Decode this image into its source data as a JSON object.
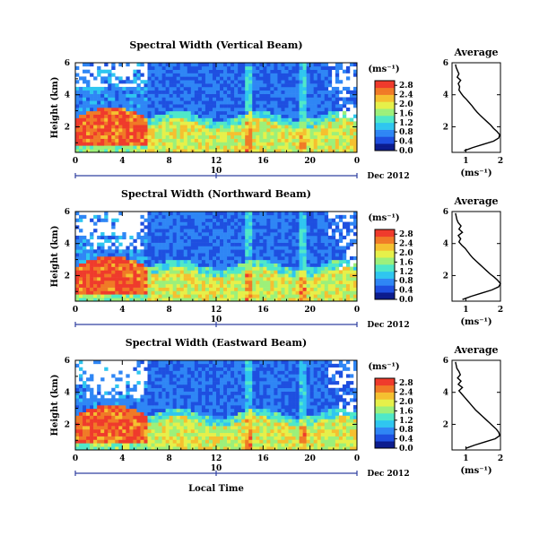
{
  "figure": {
    "xlabel": "Local Time",
    "date_label": "Dec 2012",
    "day_label": "10",
    "ylabel": "Height (km)",
    "unit_label": "(ms⁻¹)",
    "avg_title": "Average",
    "avg_xlabel": "(ms⁻¹)"
  },
  "colorbar": {
    "ticks": [
      "0.0",
      "0.4",
      "0.8",
      "1.2",
      "1.6",
      "2.0",
      "2.4",
      "2.8"
    ],
    "range": [
      0,
      3
    ],
    "colormap": [
      "#0a1a8c",
      "#1e4fe0",
      "#2f86f5",
      "#2fc6f0",
      "#4fe8c8",
      "#9cf07a",
      "#e6f04a",
      "#f5c030",
      "#f07a26",
      "#ef3b2c"
    ]
  },
  "chart_data": [
    {
      "type": "heatmap",
      "title": "Spectral Width (Vertical Beam)",
      "x_ticks": [
        "0",
        "4",
        "8",
        "12",
        "16",
        "20",
        "0"
      ],
      "xlim": [
        0,
        24
      ],
      "y_ticks": [
        "2",
        "4",
        "6"
      ],
      "ylim": [
        0.4,
        6
      ],
      "colorbar_ticks": [
        "0.0",
        "0.4",
        "0.8",
        "1.2",
        "1.6",
        "2.0",
        "2.4",
        "2.8"
      ],
      "profile": {
        "title": "Average",
        "xlabel": "(ms⁻¹)",
        "x_ticks": [
          "1",
          "2"
        ],
        "xlim": [
          0.6,
          2.0
        ],
        "y_ticks": [
          "2",
          "4",
          "6"
        ],
        "ylim": [
          0.4,
          6
        ],
        "heights": [
          0.5,
          0.7,
          0.9,
          1.1,
          1.3,
          1.5,
          1.7,
          1.9,
          2.1,
          2.3,
          2.5,
          2.7,
          2.9,
          3.1,
          3.3,
          3.5,
          3.7,
          3.9,
          4.1,
          4.3,
          4.5,
          4.7,
          4.9,
          5.1,
          5.3,
          5.5,
          5.7,
          5.9
        ],
        "values": [
          0.95,
          1.2,
          1.5,
          1.8,
          1.95,
          1.98,
          1.9,
          1.8,
          1.72,
          1.62,
          1.52,
          1.42,
          1.33,
          1.25,
          1.18,
          1.1,
          1.02,
          0.93,
          0.86,
          0.8,
          0.82,
          0.78,
          0.85,
          0.75,
          0.8,
          0.76,
          0.72,
          0.7
        ]
      }
    },
    {
      "type": "heatmap",
      "title": "Spectral Width (Northward Beam)",
      "x_ticks": [
        "0",
        "4",
        "8",
        "12",
        "16",
        "20",
        "0"
      ],
      "xlim": [
        0,
        24
      ],
      "y_ticks": [
        "2",
        "4",
        "6"
      ],
      "ylim": [
        0.4,
        6
      ],
      "colorbar_ticks": [
        "0.0",
        "0.4",
        "0.8",
        "1.2",
        "1.6",
        "2.0",
        "2.4",
        "2.8"
      ],
      "profile": {
        "title": "Average",
        "xlabel": "(ms⁻¹)",
        "x_ticks": [
          "1",
          "2"
        ],
        "xlim": [
          0.6,
          2.0
        ],
        "y_ticks": [
          "2",
          "4",
          "6"
        ],
        "ylim": [
          0.4,
          6
        ],
        "heights": [
          0.5,
          0.7,
          0.9,
          1.1,
          1.3,
          1.5,
          1.7,
          1.9,
          2.1,
          2.3,
          2.5,
          2.7,
          2.9,
          3.1,
          3.3,
          3.5,
          3.7,
          3.9,
          4.1,
          4.3,
          4.5,
          4.7,
          4.9,
          5.1,
          5.3,
          5.5,
          5.7,
          5.9
        ],
        "values": [
          0.9,
          1.15,
          1.45,
          1.75,
          1.95,
          2.0,
          1.92,
          1.82,
          1.7,
          1.6,
          1.5,
          1.4,
          1.3,
          1.2,
          1.12,
          1.05,
          0.98,
          0.88,
          0.8,
          0.85,
          0.78,
          0.9,
          0.8,
          0.86,
          0.78,
          0.74,
          0.72,
          0.7
        ]
      }
    },
    {
      "type": "heatmap",
      "title": "Spectral Width (Eastward Beam)",
      "x_ticks": [
        "0",
        "4",
        "8",
        "12",
        "16",
        "20",
        "0"
      ],
      "xlim": [
        0,
        24
      ],
      "y_ticks": [
        "2",
        "4",
        "6"
      ],
      "ylim": [
        0.4,
        6
      ],
      "colorbar_ticks": [
        "0.0",
        "0.4",
        "0.8",
        "1.2",
        "1.6",
        "2.0",
        "2.4",
        "2.8"
      ],
      "profile": {
        "title": "Average",
        "xlabel": "(ms⁻¹)",
        "x_ticks": [
          "1",
          "2"
        ],
        "xlim": [
          0.6,
          2.0
        ],
        "y_ticks": [
          "2",
          "4",
          "6"
        ],
        "ylim": [
          0.4,
          6
        ],
        "heights": [
          0.5,
          0.7,
          0.9,
          1.1,
          1.3,
          1.5,
          1.7,
          1.9,
          2.1,
          2.3,
          2.5,
          2.7,
          2.9,
          3.1,
          3.3,
          3.5,
          3.7,
          3.9,
          4.1,
          4.3,
          4.5,
          4.7,
          4.9,
          5.1,
          5.3,
          5.5,
          5.7,
          5.9
        ],
        "values": [
          1.0,
          1.25,
          1.55,
          1.85,
          1.98,
          1.95,
          1.88,
          1.78,
          1.68,
          1.58,
          1.48,
          1.38,
          1.28,
          1.2,
          1.12,
          1.04,
          0.96,
          0.88,
          0.8,
          0.9,
          0.78,
          0.86,
          0.76,
          0.84,
          0.8,
          0.74,
          0.72,
          0.7
        ]
      }
    }
  ]
}
